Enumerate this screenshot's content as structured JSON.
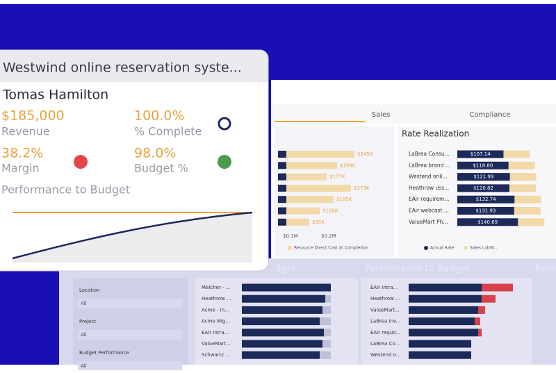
{
  "card": {
    "title": "Westwind online reservation syste...",
    "name": "Tomas Hamilton",
    "kpis": [
      {
        "value": "$185,000",
        "label": "Revenue"
      },
      {
        "value": "100.0%",
        "label": "% Complete"
      },
      {
        "value": "38.2%",
        "label": "Margin"
      },
      {
        "value": "98.0%",
        "label": "Budget %"
      }
    ],
    "chart_title": "Performance to Budget"
  },
  "dashboard": {
    "tabs": [
      "Sales",
      "Compliance"
    ],
    "cost_labels": [
      "$245K",
      "$199K",
      "$177K",
      "$373K",
      "$185K",
      "$150K",
      "$95K"
    ],
    "cost_axis": [
      "$0.1M",
      "$0.2M"
    ],
    "cost_legend": "Resource Direct Cost at Completion",
    "rate": {
      "title": "Rate Realization",
      "rows": [
        "LaBrea Consu...",
        "LaBrea brand ...",
        "Westend onli...",
        "Heathrow uss...",
        "EAir requirem...",
        "EAir webcast ...",
        "ValueMart Ph..."
      ],
      "values": [
        107.14,
        118.8,
        121.99,
        120.82,
        132.74,
        131.93,
        140.69
      ],
      "value_labels": [
        "$107.14",
        "$118.80",
        "$121.99",
        "$120.82",
        "$132.74",
        "$131.93",
        "$140.69"
      ],
      "legend": [
        "Actual Rate",
        "Sales LabW..."
      ]
    },
    "filters": [
      {
        "label": "Location",
        "value": "All"
      },
      {
        "label": "Project",
        "value": "All"
      },
      {
        "label": "Budget Performance",
        "value": "All"
      }
    ],
    "budget_title": "dget",
    "budget_rows": [
      "Melcher - ...",
      "Heathrow ...",
      "Acme - In...",
      "Acme Mig...",
      "EAir Intra...",
      "ValueMart...",
      "Schwartz ..."
    ],
    "perf_title": "Performance to Budget",
    "perf_rows": [
      "EAir Intra...",
      "Heathrow ...",
      "ValueMart...",
      "LaBrea Inv...",
      "EAir requir...",
      "LaBrea Co...",
      "Westend o..."
    ],
    "rate_title_2": "Rate"
  }
}
